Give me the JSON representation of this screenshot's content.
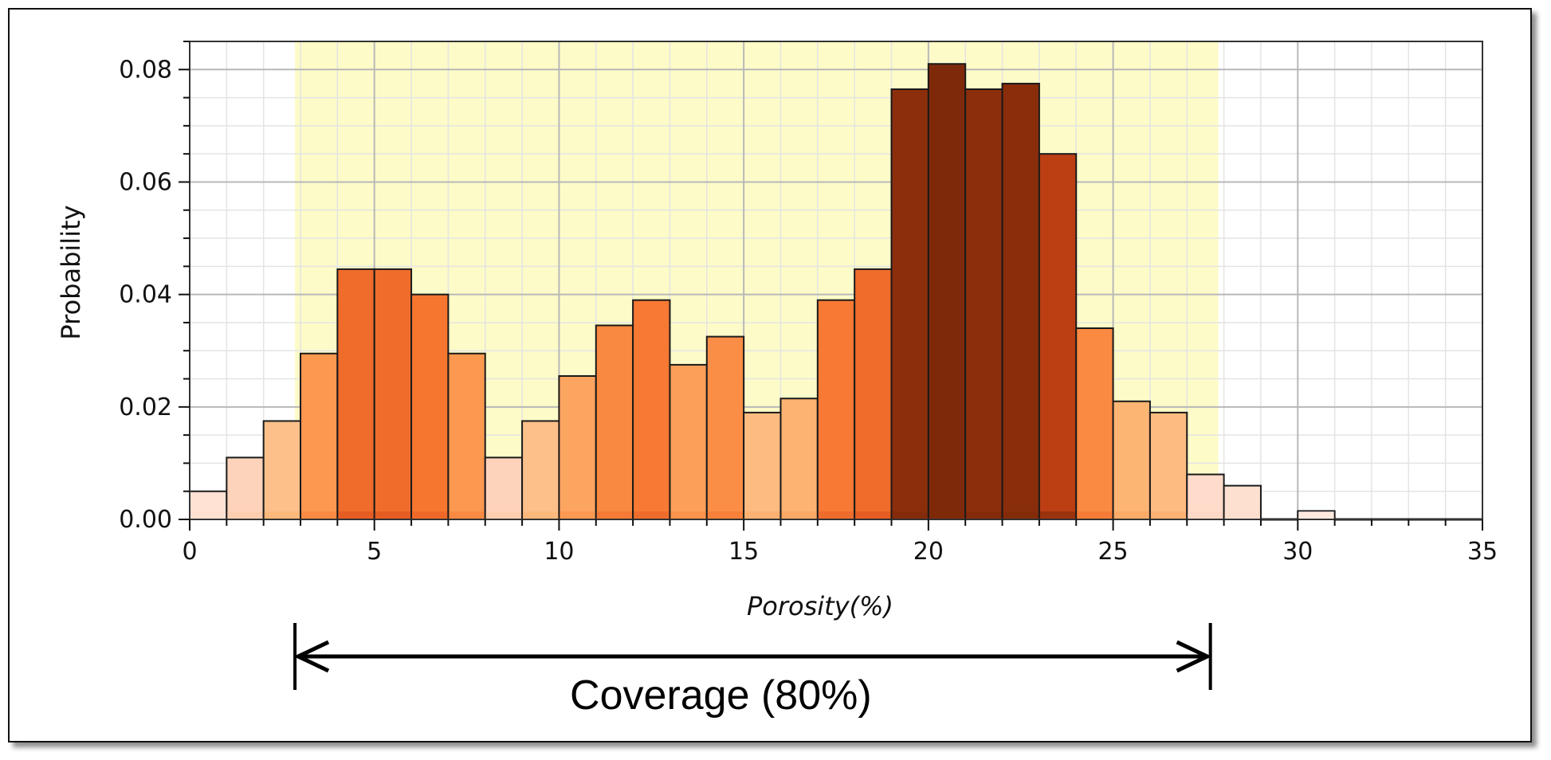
{
  "chart_data": {
    "type": "bar",
    "xlabel": "Porosity(%)",
    "ylabel": "Probability",
    "xlim": [
      0,
      35
    ],
    "ylim": [
      0,
      0.085
    ],
    "x_ticks": [
      "0",
      "5",
      "10",
      "15",
      "20",
      "25",
      "30",
      "35"
    ],
    "y_ticks": [
      "0.00",
      "0.02",
      "0.04",
      "0.06",
      "0.08"
    ],
    "grid": true,
    "bin_width": 1,
    "bins": [
      {
        "x": 0,
        "value": 0.005
      },
      {
        "x": 1,
        "value": 0.011
      },
      {
        "x": 2,
        "value": 0.0175
      },
      {
        "x": 3,
        "value": 0.0295
      },
      {
        "x": 4,
        "value": 0.0445
      },
      {
        "x": 5,
        "value": 0.0445
      },
      {
        "x": 6,
        "value": 0.04
      },
      {
        "x": 7,
        "value": 0.0295
      },
      {
        "x": 8,
        "value": 0.011
      },
      {
        "x": 9,
        "value": 0.0175
      },
      {
        "x": 10,
        "value": 0.0255
      },
      {
        "x": 11,
        "value": 0.0345
      },
      {
        "x": 12,
        "value": 0.039
      },
      {
        "x": 13,
        "value": 0.0275
      },
      {
        "x": 14,
        "value": 0.0325
      },
      {
        "x": 15,
        "value": 0.019
      },
      {
        "x": 16,
        "value": 0.0215
      },
      {
        "x": 17,
        "value": 0.039
      },
      {
        "x": 18,
        "value": 0.0445
      },
      {
        "x": 19,
        "value": 0.0765
      },
      {
        "x": 20,
        "value": 0.081
      },
      {
        "x": 21,
        "value": 0.0765
      },
      {
        "x": 22,
        "value": 0.0775
      },
      {
        "x": 23,
        "value": 0.065
      },
      {
        "x": 24,
        "value": 0.034
      },
      {
        "x": 25,
        "value": 0.021
      },
      {
        "x": 26,
        "value": 0.019
      },
      {
        "x": 27,
        "value": 0.008
      },
      {
        "x": 28,
        "value": 0.006
      },
      {
        "x": 29,
        "value": 0.0
      },
      {
        "x": 30,
        "value": 0.0015
      },
      {
        "x": 31,
        "value": 0.0
      },
      {
        "x": 32,
        "value": 0.0
      },
      {
        "x": 33,
        "value": 0.0
      },
      {
        "x": 34,
        "value": 0.0
      }
    ],
    "coverage_band": {
      "x_start": 2.85,
      "x_end": 27.85,
      "color": "#fdfbc8"
    },
    "annotation": {
      "text": "Coverage (80%)",
      "x_start": 2.85,
      "x_end": 27.85
    },
    "colors": {
      "frame": "#111111",
      "grid_major": "#b8b8b8",
      "grid_minor": "#e4e4e4",
      "bar_edge": "#1a1a1a"
    }
  }
}
